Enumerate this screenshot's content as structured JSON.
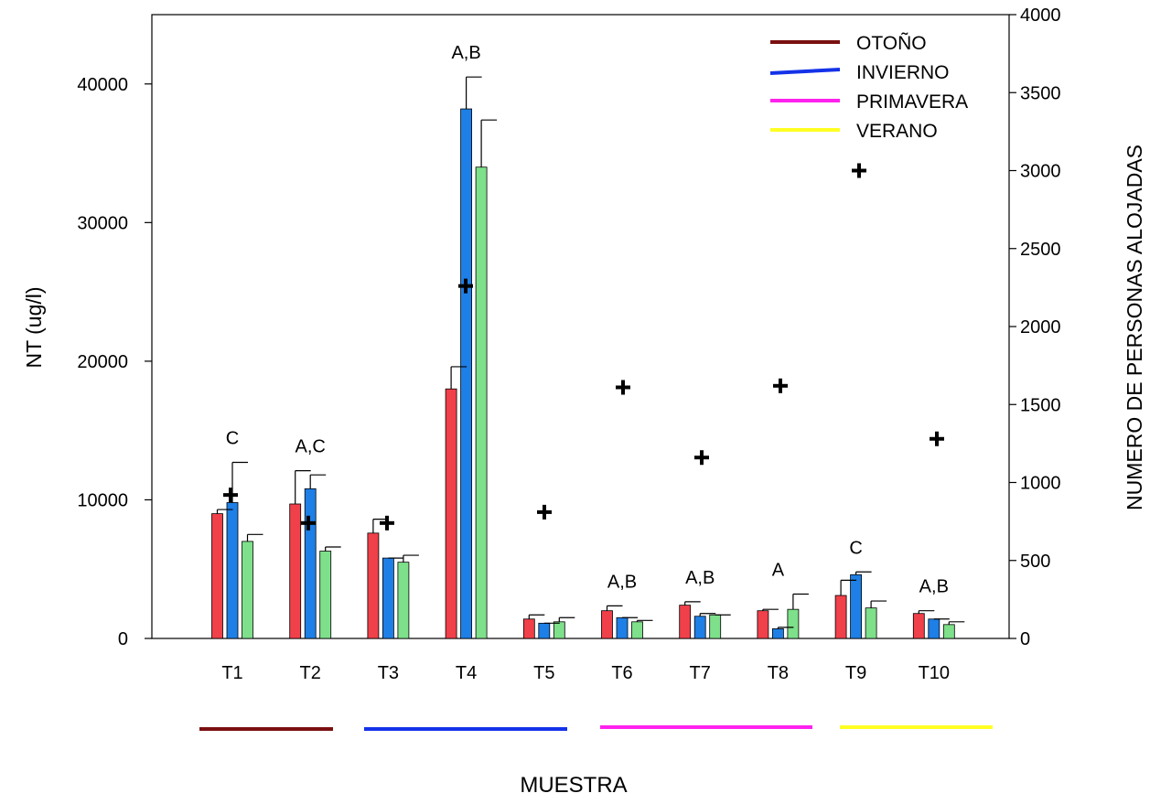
{
  "chart_data": {
    "type": "bar",
    "xlabel": "MUESTRA",
    "ylabel": "NT (ug/l)",
    "y2label": "NUMERO DE PERSONAS ALOJADAS",
    "ylim": [
      0,
      45000
    ],
    "y2lim": [
      0,
      4000
    ],
    "yticks": [
      "0",
      "10000",
      "20000",
      "30000",
      "40000"
    ],
    "y2ticks": [
      "0",
      "500",
      "1000",
      "1500",
      "2000",
      "2500",
      "3000",
      "3500",
      "4000"
    ],
    "categories": [
      "T1",
      "T2",
      "T3",
      "T4",
      "T5",
      "T6",
      "T7",
      "T8",
      "T9",
      "T10"
    ],
    "series": [
      {
        "color": "#f0404a",
        "values": [
          9000,
          9700,
          7600,
          18000,
          1400,
          2000,
          2400,
          2000,
          3100,
          1800
        ],
        "errors": [
          300,
          2400,
          1000,
          1600,
          300,
          350,
          250,
          100,
          1100,
          200
        ]
      },
      {
        "color": "#1e7fe6",
        "values": [
          9800,
          10800,
          5800,
          38200,
          1100,
          1500,
          1600,
          700,
          4600,
          1400
        ],
        "errors": [
          2900,
          1000,
          0,
          2300,
          0,
          0,
          200,
          100,
          200,
          0
        ]
      },
      {
        "color": "#7ee08a",
        "values": [
          7000,
          6300,
          5500,
          34000,
          1200,
          1200,
          1700,
          2100,
          2200,
          1000
        ],
        "errors": [
          500,
          300,
          500,
          3400,
          300,
          100,
          0,
          1100,
          500,
          200
        ]
      }
    ],
    "persons": [
      920,
      740,
      740,
      2260,
      810,
      1610,
      1160,
      1620,
      3000,
      1280
    ],
    "annotations": [
      "C",
      "A,C",
      "",
      "A,B",
      "",
      "A,B",
      "A,B",
      "A",
      "C",
      "A,B"
    ],
    "legend": {
      "placement": "top-right",
      "entries": [
        {
          "label": "OTOÑO",
          "color": "#7a1010"
        },
        {
          "label": "INVIERNO",
          "color": "#1432e8"
        },
        {
          "label": "PRIMAVERA",
          "color": "#ff22ee"
        },
        {
          "label": "VERANO",
          "color": "#ffff22"
        }
      ]
    },
    "season_groups": [
      {
        "season": "OTOÑO",
        "color": "#7a1010",
        "from": "T1",
        "to": "T2"
      },
      {
        "season": "INVIERNO",
        "color": "#1432e8",
        "from": "T3",
        "to": "T5"
      },
      {
        "season": "PRIMAVERA",
        "color": "#ff22ee",
        "from": "T6",
        "to": "T8"
      },
      {
        "season": "VERANO",
        "color": "#ffff22",
        "from": "T9",
        "to": "T10"
      }
    ]
  }
}
